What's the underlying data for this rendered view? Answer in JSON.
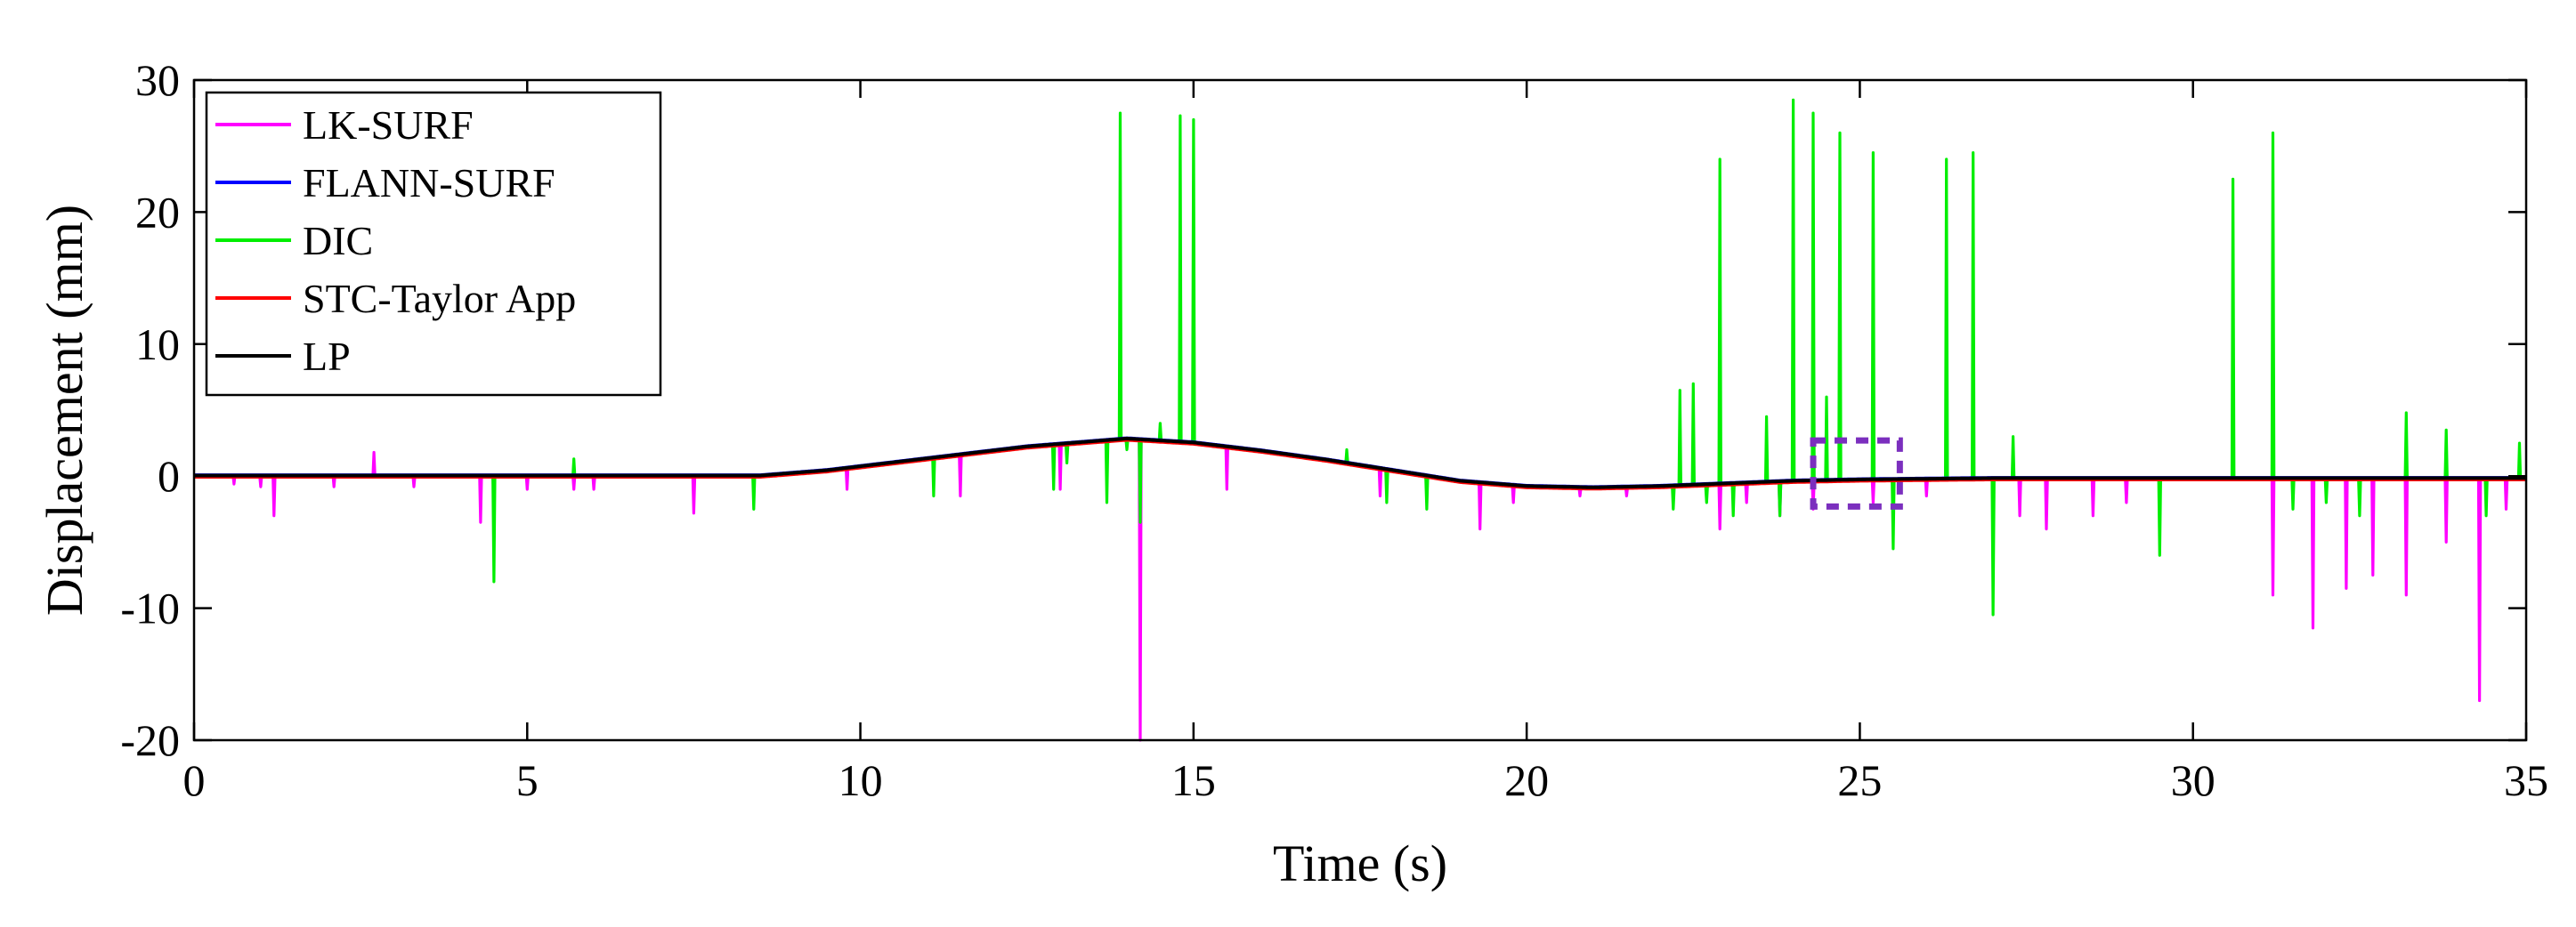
{
  "chart_data": {
    "type": "line",
    "title": "",
    "xlabel": "Time (s)",
    "ylabel": "Displacement (mm)",
    "xlim": [
      0,
      35
    ],
    "ylim": [
      -20,
      30
    ],
    "xticks": [
      0,
      5,
      10,
      15,
      20,
      25,
      30,
      35
    ],
    "xtick_labels": [
      "0",
      "5",
      "10",
      "15",
      "20",
      "25",
      "30",
      "35"
    ],
    "yticks": [
      -20,
      -10,
      0,
      10,
      20,
      30
    ],
    "ytick_labels": [
      "-20",
      "-10",
      "0",
      "10",
      "20",
      "30"
    ],
    "grid": false,
    "legend_position": "top-left",
    "legend": [
      "LK-SURF",
      "FLANN-SURF",
      "DIC",
      "STC-Taylor App",
      "LP"
    ],
    "baseline": {
      "x": [
        0,
        8.5,
        9.5,
        10.5,
        11.5,
        12.5,
        13.5,
        14.0,
        15.0,
        16.0,
        17.0,
        18.0,
        19.0,
        20.0,
        21.0,
        22.0,
        23.0,
        24.0,
        25.0,
        27.0,
        30.0,
        35.0
      ],
      "y": [
        0,
        0,
        0.4,
        1.0,
        1.6,
        2.2,
        2.6,
        2.8,
        2.5,
        1.9,
        1.2,
        0.4,
        -0.4,
        -0.8,
        -0.9,
        -0.8,
        -0.6,
        -0.4,
        -0.3,
        -0.2,
        -0.2,
        -0.2
      ]
    },
    "series": [
      {
        "name": "LK-SURF",
        "color": "#FF00FF",
        "spikes": [
          [
            0.6,
            -0.6
          ],
          [
            1.0,
            -0.8
          ],
          [
            1.2,
            -3.0
          ],
          [
            2.1,
            -0.8
          ],
          [
            2.7,
            1.8
          ],
          [
            3.3,
            -0.8
          ],
          [
            4.3,
            -3.5
          ],
          [
            4.5,
            -2.0
          ],
          [
            5.0,
            -1.0
          ],
          [
            5.7,
            -1.0
          ],
          [
            6.0,
            -1.0
          ],
          [
            7.5,
            -2.8
          ],
          [
            9.8,
            -1.0
          ],
          [
            11.5,
            -1.5
          ],
          [
            13.0,
            -1.0
          ],
          [
            14.2,
            -20.0
          ],
          [
            15.5,
            -1.0
          ],
          [
            17.8,
            -1.5
          ],
          [
            19.3,
            -4.0
          ],
          [
            19.8,
            -2.0
          ],
          [
            20.8,
            -1.5
          ],
          [
            21.5,
            -1.5
          ],
          [
            22.9,
            -4.0
          ],
          [
            23.3,
            -2.0
          ],
          [
            23.8,
            -3.0
          ],
          [
            24.3,
            -2.5
          ],
          [
            25.2,
            -2.0
          ],
          [
            26.0,
            -1.5
          ],
          [
            27.4,
            -3.0
          ],
          [
            27.8,
            -4.0
          ],
          [
            28.5,
            -3.0
          ],
          [
            29.0,
            -2.0
          ],
          [
            29.5,
            -1.5
          ],
          [
            31.2,
            -9.0
          ],
          [
            31.8,
            -11.5
          ],
          [
            32.3,
            -8.5
          ],
          [
            32.7,
            -7.5
          ],
          [
            33.2,
            -9.0
          ],
          [
            33.8,
            -5.0
          ],
          [
            34.3,
            -17.0
          ],
          [
            34.7,
            -2.5
          ]
        ]
      },
      {
        "name": "FLANN-SURF",
        "color": "#0000FF",
        "spikes": []
      },
      {
        "name": "DIC",
        "color": "#00EE00",
        "spikes": [
          [
            4.5,
            -8.0
          ],
          [
            5.7,
            1.3
          ],
          [
            8.4,
            -2.5
          ],
          [
            11.1,
            -1.5
          ],
          [
            12.9,
            -1.0
          ],
          [
            13.1,
            1.0
          ],
          [
            13.7,
            -2.0
          ],
          [
            13.9,
            27.5
          ],
          [
            14.0,
            2.0
          ],
          [
            14.2,
            -3.5
          ],
          [
            14.5,
            4.0
          ],
          [
            14.8,
            27.3
          ],
          [
            15.0,
            27.0
          ],
          [
            17.3,
            2.0
          ],
          [
            17.9,
            -2.0
          ],
          [
            18.5,
            -2.5
          ],
          [
            22.2,
            -2.5
          ],
          [
            22.3,
            6.5
          ],
          [
            22.5,
            7.0
          ],
          [
            22.7,
            -2.0
          ],
          [
            22.9,
            24.0
          ],
          [
            23.1,
            -3.0
          ],
          [
            23.6,
            4.5
          ],
          [
            23.8,
            -3.0
          ],
          [
            24.0,
            28.5
          ],
          [
            24.3,
            27.5
          ],
          [
            24.5,
            6.0
          ],
          [
            24.7,
            26.0
          ],
          [
            25.2,
            24.5
          ],
          [
            25.5,
            -5.5
          ],
          [
            26.3,
            24.0
          ],
          [
            26.7,
            24.5
          ],
          [
            27.0,
            -10.5
          ],
          [
            27.3,
            3.0
          ],
          [
            29.5,
            -6.0
          ],
          [
            30.6,
            22.5
          ],
          [
            31.2,
            26.0
          ],
          [
            31.5,
            -2.5
          ],
          [
            32.0,
            -2.0
          ],
          [
            32.5,
            -3.0
          ],
          [
            33.2,
            4.8
          ],
          [
            33.8,
            3.5
          ],
          [
            34.4,
            -3.0
          ],
          [
            34.9,
            2.5
          ]
        ]
      },
      {
        "name": "STC-Taylor App",
        "color": "#FF0000",
        "spikes": []
      },
      {
        "name": "LP",
        "color": "#000000",
        "spikes": []
      }
    ],
    "annotation": {
      "type": "dashed-rectangle",
      "color": "#7B2FBE",
      "x_range": [
        24.3,
        25.6
      ],
      "y_range": [
        -2.3,
        2.7
      ]
    }
  }
}
